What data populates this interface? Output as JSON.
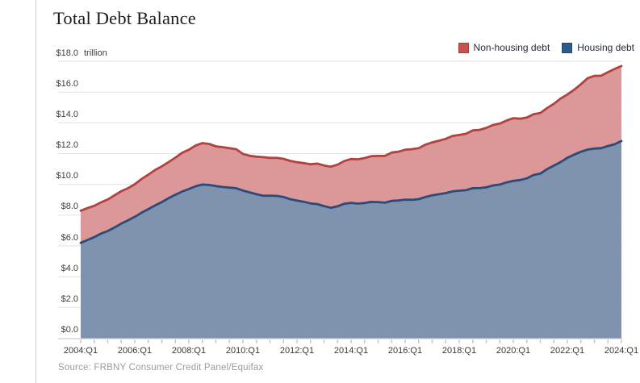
{
  "page": {
    "title": "Total Debt Balance",
    "source_note": "Source: FRBNY Consumer Credit Panel/Equifax"
  },
  "legend": {
    "items": [
      {
        "label": "Non-housing debt",
        "color": "#c4524e",
        "border": "#ab3c39"
      },
      {
        "label": "Housing debt",
        "color": "#2d5a8c",
        "border": "#1e4c77"
      }
    ]
  },
  "chart_data": {
    "type": "area",
    "stacked": true,
    "title": "Total Debt Balance",
    "unit": "trillion",
    "x_note": "quarterly data, 2004:Q1 through 2024:Q1, 81 points; values in $ trillions",
    "x_tick_labels": [
      "2004:Q1",
      "2006:Q1",
      "2008:Q1",
      "2010:Q1",
      "2012:Q1",
      "2014:Q1",
      "2016:Q1",
      "2018:Q1",
      "2020:Q1",
      "2022:Q1",
      "2024:Q1"
    ],
    "y_tick_labels": [
      "$0.0",
      "$2.0",
      "$4.0",
      "$6.0",
      "$8.0",
      "$10.0",
      "$12.0",
      "$14.0",
      "$16.0",
      "$18.0"
    ],
    "ylim": [
      0,
      18
    ],
    "grid": "horizontal",
    "legend_position": "top-right",
    "series": [
      {
        "name": "Housing debt",
        "line_color": "#2a4c7b",
        "fill_color": "#7f93ae",
        "values": [
          6.2,
          6.39,
          6.57,
          6.8,
          6.97,
          7.2,
          7.45,
          7.66,
          7.89,
          8.16,
          8.39,
          8.63,
          8.85,
          9.1,
          9.33,
          9.53,
          9.7,
          9.88,
          9.99,
          9.96,
          9.89,
          9.83,
          9.79,
          9.75,
          9.6,
          9.48,
          9.36,
          9.26,
          9.27,
          9.25,
          9.18,
          9.04,
          8.95,
          8.87,
          8.76,
          8.72,
          8.59,
          8.48,
          8.58,
          8.74,
          8.8,
          8.75,
          8.79,
          8.86,
          8.85,
          8.81,
          8.93,
          8.95,
          9.01,
          9.0,
          9.04,
          9.18,
          9.29,
          9.36,
          9.43,
          9.54,
          9.59,
          9.62,
          9.75,
          9.75,
          9.81,
          9.93,
          9.99,
          10.13,
          10.23,
          10.28,
          10.39,
          10.61,
          10.7,
          10.99,
          11.22,
          11.45,
          11.73,
          11.93,
          12.12,
          12.26,
          12.33,
          12.35,
          12.49,
          12.61,
          12.82
        ]
      },
      {
        "name": "Non-housing debt",
        "line_color": "#b2423e",
        "fill_color": "#dc9798",
        "values": [
          2.09,
          2.07,
          2.04,
          2.03,
          2.05,
          2.09,
          2.11,
          2.09,
          2.12,
          2.19,
          2.24,
          2.3,
          2.32,
          2.35,
          2.41,
          2.52,
          2.55,
          2.65,
          2.69,
          2.67,
          2.58,
          2.59,
          2.56,
          2.54,
          2.38,
          2.38,
          2.44,
          2.51,
          2.45,
          2.47,
          2.48,
          2.49,
          2.49,
          2.51,
          2.55,
          2.63,
          2.64,
          2.67,
          2.7,
          2.78,
          2.85,
          2.88,
          2.92,
          2.97,
          3.0,
          3.04,
          3.14,
          3.17,
          3.24,
          3.29,
          3.31,
          3.4,
          3.44,
          3.48,
          3.53,
          3.61,
          3.62,
          3.67,
          3.76,
          3.79,
          3.86,
          3.93,
          3.96,
          4.02,
          4.07,
          3.99,
          3.96,
          3.95,
          3.94,
          3.97,
          4.02,
          4.13,
          4.11,
          4.22,
          4.39,
          4.64,
          4.72,
          4.71,
          4.8,
          4.89,
          4.87
        ]
      }
    ],
    "stacking_note": "Non-housing debt is stacked on top of Housing debt; the top edge of the red band equals total debt balance (peak 12.68 in 2008:Q3, trough 11.15 in 2013:Q2, 17.69 in 2024:Q1)"
  },
  "colors": {
    "gridline": "#e1e1e1",
    "baseline": "#d6d6d6",
    "tick": "#bcc2ca",
    "axis_label": "#3d3d3d",
    "source_text": "#9b9b9b",
    "page_border": "#cfcfcf",
    "background": "#ffffff"
  }
}
